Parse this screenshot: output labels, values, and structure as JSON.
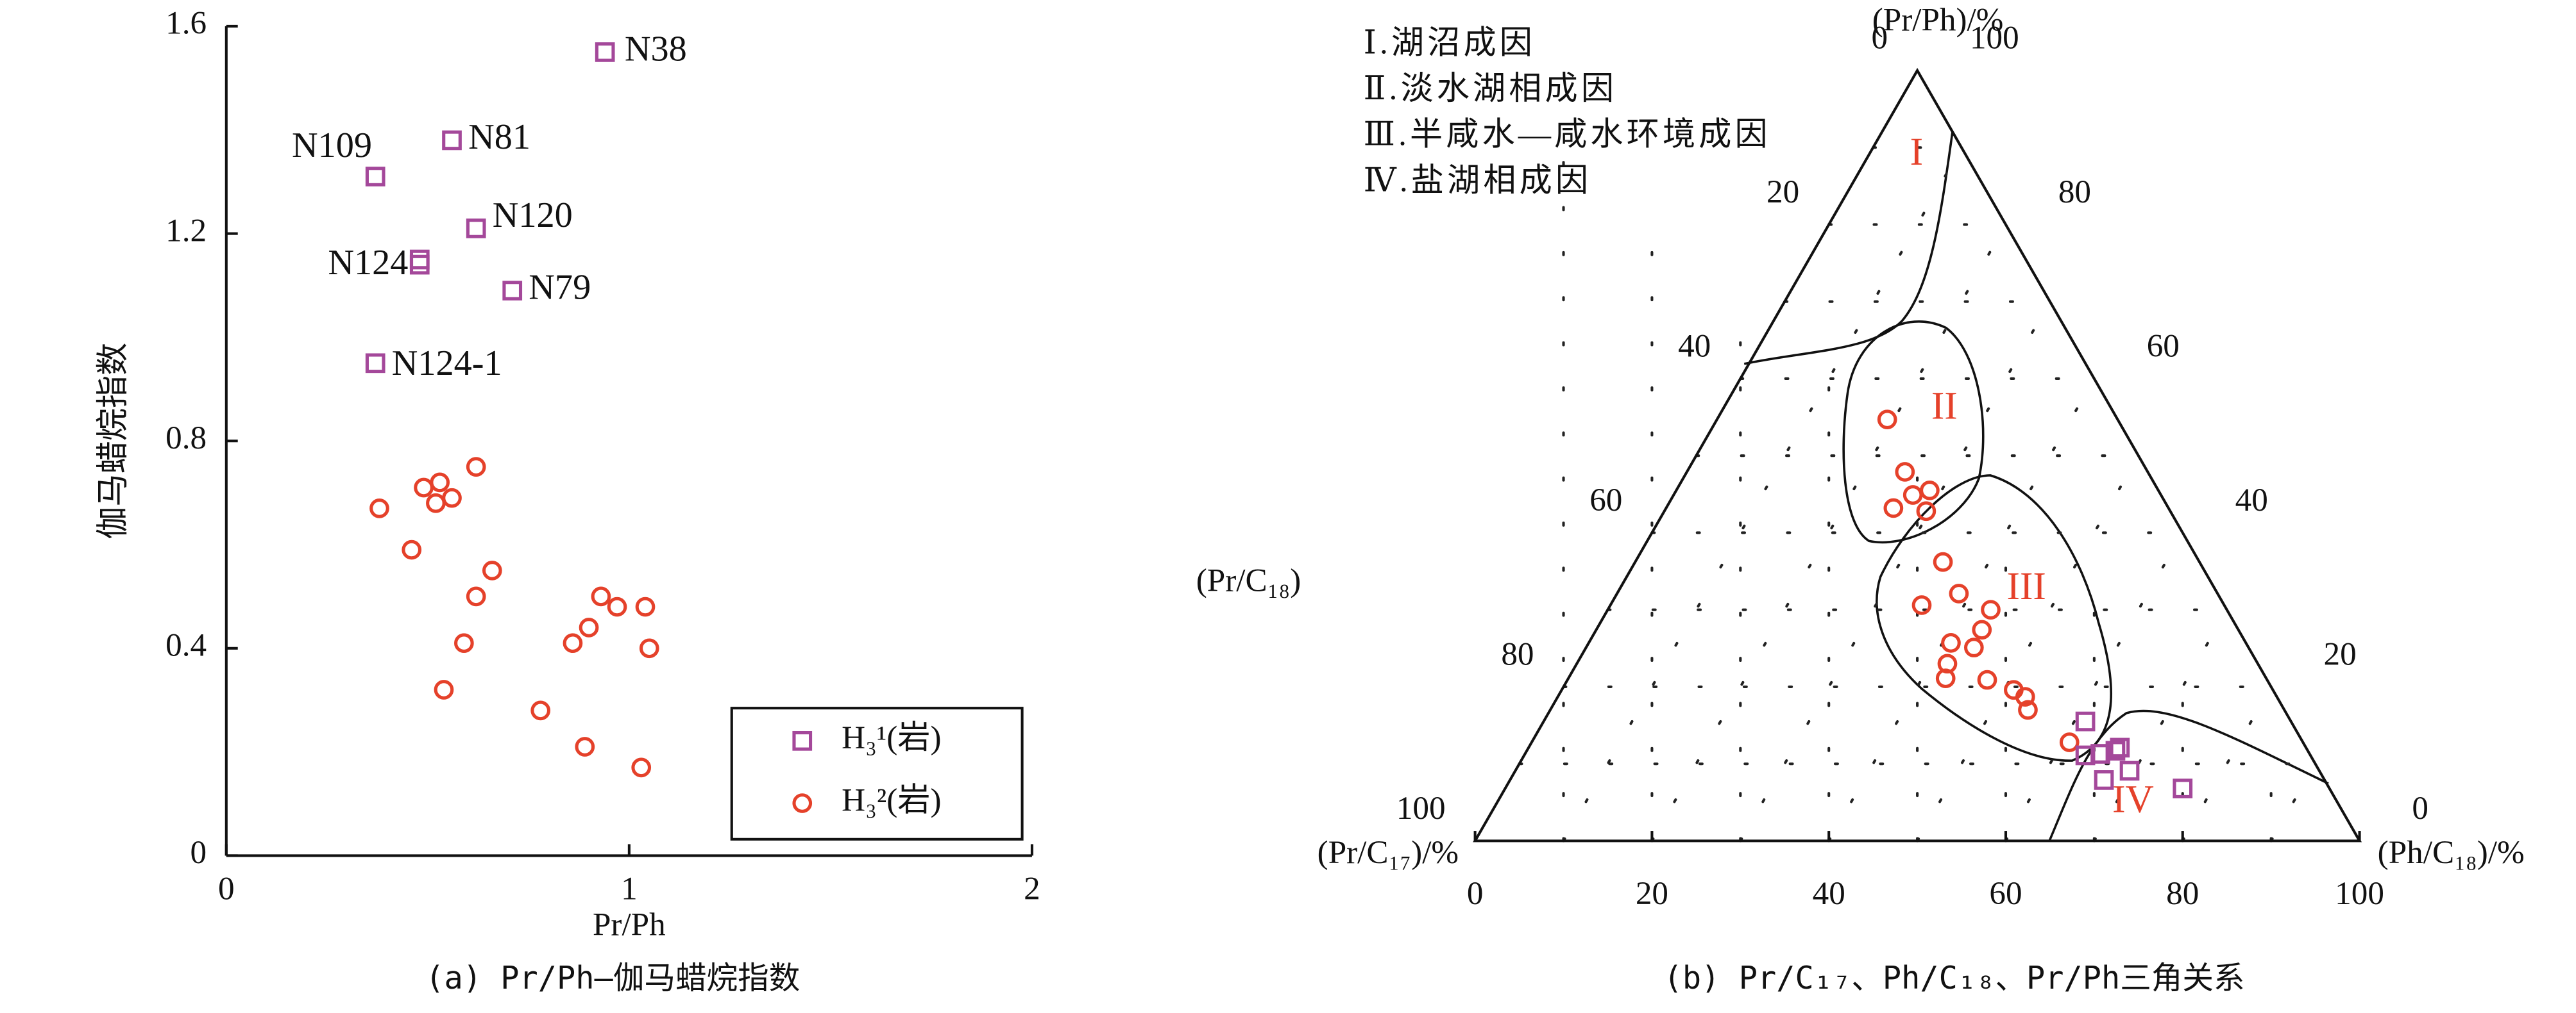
{
  "chart_data": [
    {
      "type": "scatter",
      "caption": "(a) Pr/Ph—伽马蜡烷指数",
      "x_label": "Pr/Ph",
      "y_label": "伽马蜡烷指数",
      "xlim": [
        0,
        2
      ],
      "xticks": [
        0,
        1,
        2
      ],
      "ylim": [
        0,
        1.6
      ],
      "yticks": [
        0,
        0.4,
        0.8,
        1.2,
        1.6
      ],
      "series": [
        {
          "name": "H₃¹(岩)",
          "color": "#a4489a",
          "marker": "square",
          "x": [
            0.94,
            0.56,
            0.37,
            0.62,
            0.48,
            0.48,
            0.71,
            0.37
          ],
          "values": [
            1.55,
            1.38,
            1.31,
            1.21,
            1.15,
            1.14,
            1.09,
            0.95
          ],
          "point_labels": [
            "N38",
            "N81",
            "N109",
            "N120",
            "N124",
            null,
            "N79",
            "N124-1"
          ]
        },
        {
          "name": "H₃²(岩)",
          "color": "#e5412a",
          "marker": "circle",
          "x": [
            0.62,
            0.49,
            0.53,
            0.56,
            0.52,
            0.38,
            0.46,
            0.66,
            0.62,
            0.93,
            0.97,
            1.04,
            0.9,
            0.86,
            0.59,
            1.05,
            0.54,
            0.78,
            0.89,
            1.03
          ],
          "values": [
            0.75,
            0.71,
            0.72,
            0.69,
            0.68,
            0.67,
            0.59,
            0.55,
            0.5,
            0.5,
            0.48,
            0.48,
            0.44,
            0.41,
            0.41,
            0.4,
            0.32,
            0.28,
            0.21,
            0.17
          ]
        }
      ]
    },
    {
      "type": "ternary",
      "caption": "(b) Pr/C₁₇、Ph/C₁₈、Pr/Ph三角关系",
      "top_label": "(Pr/Ph)/%",
      "left_corner_label": "(Pr/C₁₇)/%",
      "right_corner_label": "(Ph/C₁₈)/%",
      "left_side_label": "(Pr/C₁₈)",
      "xlim": [
        0,
        100
      ],
      "xticks": [
        0,
        20,
        40,
        60,
        80,
        100
      ],
      "ylim": [
        0,
        100
      ],
      "left_ticks": [
        0,
        20,
        40,
        60,
        80,
        100
      ],
      "right_ticks": [
        100,
        80,
        60,
        40,
        20,
        0
      ],
      "annotations": [
        "Ⅰ.湖沼成因",
        "Ⅱ.淡水湖相成因",
        "Ⅲ.半咸水—咸水环境成因",
        "Ⅳ.盐湖相成因"
      ],
      "region_labels": [
        "I",
        "II",
        "III",
        "IV"
      ],
      "region_color": "#e5412a",
      "series": [
        {
          "color": "#e5412a",
          "marker": "circle",
          "x": [
            46.6,
            48.6,
            49.5,
            51.4,
            47.3,
            51.0,
            52.9,
            54.7,
            58.3,
            50.5,
            57.3,
            53.8,
            56.4,
            53.4,
            57.9,
            53.2,
            60.9,
            62.2,
            62.5,
            67.2
          ],
          "values": [
            54.7,
            47.9,
            44.9,
            45.5,
            43.2,
            42.8,
            36.2,
            32.1,
            30.0,
            30.6,
            27.4,
            25.7,
            25.1,
            23.0,
            20.9,
            21.1,
            19.6,
            18.7,
            17.0,
            12.8
          ]
        },
        {
          "color": "#a4489a",
          "marker": "square",
          "x": [
            69.0,
            69.0,
            70.7,
            72.4,
            72.9,
            74.0,
            71.1,
            80.0
          ],
          "values": [
            15.5,
            11.1,
            11.3,
            11.7,
            12.1,
            9.1,
            7.9,
            6.8
          ]
        }
      ]
    }
  ]
}
